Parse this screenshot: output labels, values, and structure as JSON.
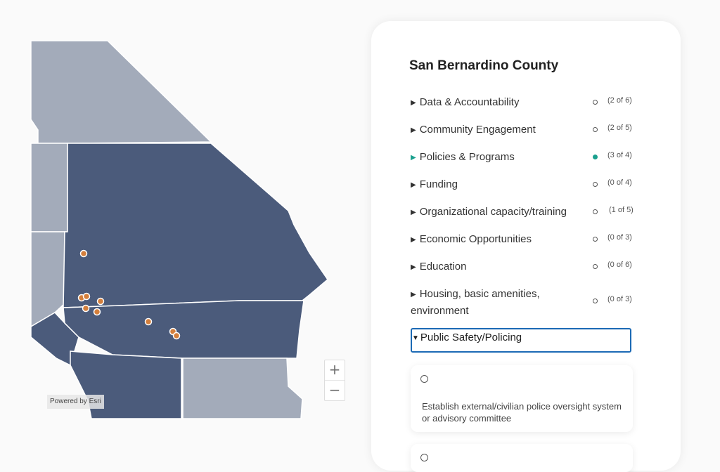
{
  "map": {
    "attribution": "Powered by Esri",
    "zoom_in_label": "+",
    "zoom_out_label": "−",
    "colors": {
      "selected_county": "#4b5b7b",
      "other_county": "#a3abba",
      "marker": "#d47f3c",
      "border": "#ffffff"
    },
    "marker_count": 11
  },
  "panel": {
    "title": "San Bernardino County",
    "categories": [
      {
        "label": "Data & Accountability",
        "status": "(2 of 6)",
        "active": false
      },
      {
        "label": "Community Engagement",
        "status": "(2 of 5)",
        "active": false
      },
      {
        "label": "Policies & Programs",
        "status": "(3 of 4)",
        "active": true
      },
      {
        "label": "Funding",
        "status": "(0 of 4)",
        "active": false
      },
      {
        "label": "Organizational capacity/training",
        "status": "(1 of 5)",
        "active": false
      },
      {
        "label": "Economic Opportunities",
        "status": "(0 of 3)",
        "active": false
      },
      {
        "label": "Education",
        "status": "(0 of 6)",
        "active": false
      },
      {
        "label": "Housing, basic amenities, environment",
        "status": "(0 of 3)",
        "active": false
      }
    ],
    "expanded_category": {
      "label": "Public Safety/Policing",
      "items": [
        {
          "text": "Establish external/civilian police oversight system or advisory committee"
        },
        {
          "text": ""
        }
      ]
    },
    "accent_color": "#1aa08e",
    "focus_color": "#1c6ab5",
    "expanded_arrow_icon": "triangle-down-icon",
    "collapsed_arrow_icon": "triangle-right-icon"
  }
}
